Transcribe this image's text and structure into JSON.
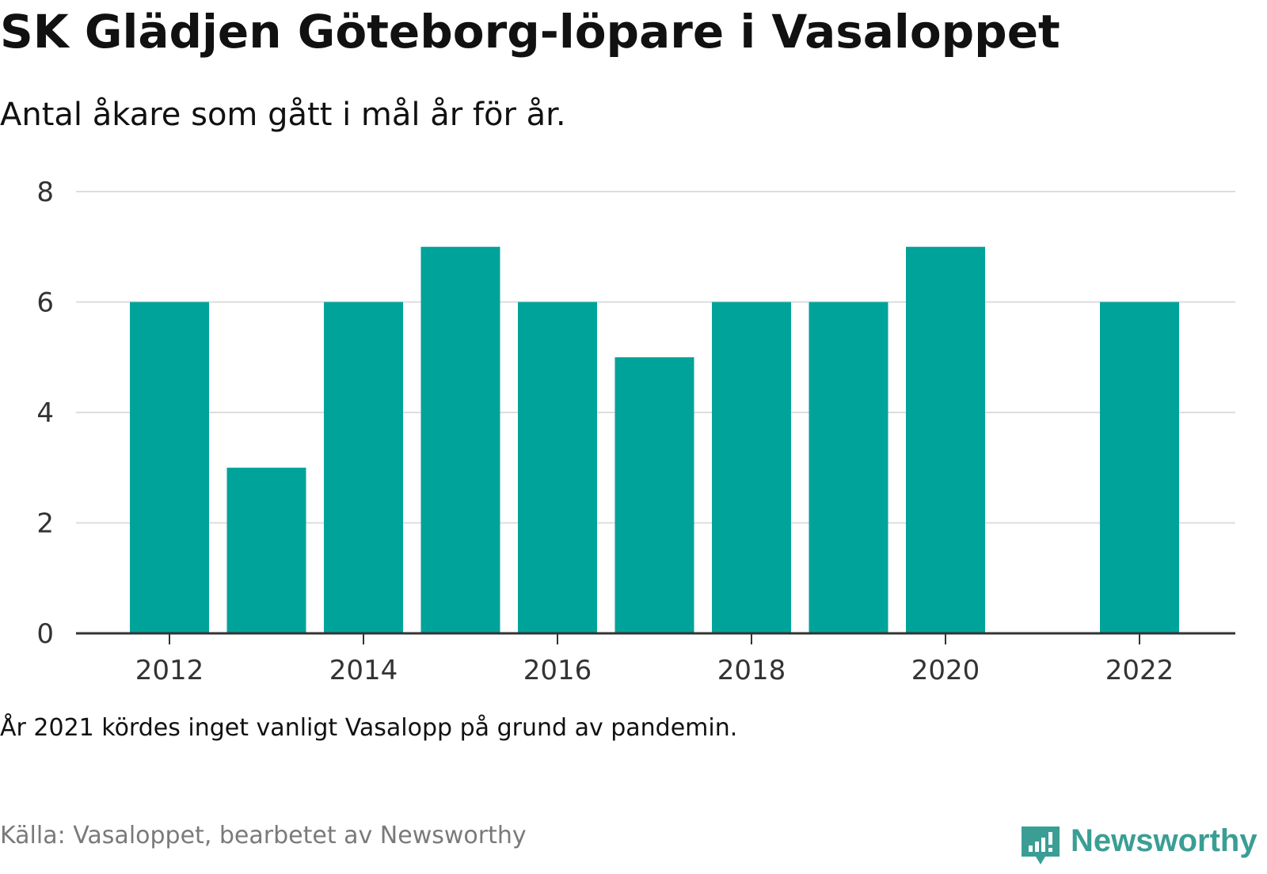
{
  "chart_data": {
    "type": "bar",
    "title": "SK Glädjen Göteborg-löpare i Vasaloppet",
    "subtitle": "Antal åkare som gått i mål år för år.",
    "x": [
      2012,
      2013,
      2014,
      2015,
      2016,
      2017,
      2018,
      2019,
      2020,
      2021,
      2022
    ],
    "values": [
      6,
      3,
      6,
      7,
      6,
      5,
      6,
      6,
      7,
      null,
      6
    ],
    "x_ticks": [
      2012,
      2014,
      2016,
      2018,
      2020,
      2022
    ],
    "x_tick_labels": [
      "2012",
      "2014",
      "2016",
      "2018",
      "2020",
      "2022"
    ],
    "y_ticks": [
      0,
      2,
      4,
      6,
      8
    ],
    "y_tick_labels": [
      "0",
      "2",
      "4",
      "6",
      "8"
    ],
    "ylim": [
      0,
      8
    ],
    "xlabel": "",
    "ylabel": "",
    "grid": true,
    "bar_color": "#00a39a"
  },
  "footer": {
    "note": "År 2021 kördes inget vanligt Vasalopp på grund av pandemin.",
    "source": "Källa: Vasaloppet, bearbetet av Newsworthy"
  },
  "brand": {
    "name": "Newsworthy",
    "icon": "newsworthy-logo-icon",
    "color": "#3a9e94"
  }
}
